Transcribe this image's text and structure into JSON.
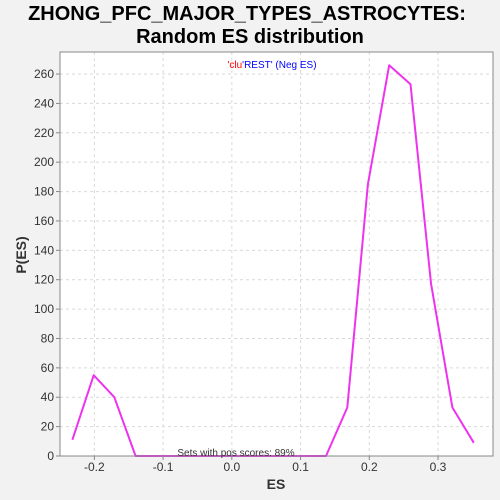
{
  "chart_data": {
    "type": "line",
    "title_line1": "ZHONG_PFC_MAJOR_TYPES_ASTROCYTES:",
    "title_line2": "Random ES distribution",
    "xlabel": "ES",
    "ylabel": "P(ES)",
    "xlim": [
      -0.25,
      0.38
    ],
    "ylim": [
      0,
      275
    ],
    "xticks": [
      -0.2,
      -0.1,
      0.0,
      0.1,
      0.2,
      0.3
    ],
    "xtick_labels": [
      "-0.2",
      "-0.1",
      "0.0",
      "0.1",
      "0.2",
      "0.3"
    ],
    "yticks": [
      0,
      20,
      40,
      60,
      80,
      100,
      120,
      140,
      160,
      180,
      200,
      220,
      240,
      260
    ],
    "grid": true,
    "legend": {
      "placement": "top-center",
      "entries": [
        {
          "text": "'clu",
          "color": "#ff0000"
        },
        {
          "text": "'REST' (Neg ES)",
          "color": "#0000ff"
        }
      ]
    },
    "annotation": "Sets with pos scores: 89%",
    "series": [
      {
        "color": "#ee33ee",
        "x": [
          -0.232,
          -0.201,
          -0.171,
          -0.14,
          -0.109,
          -0.078,
          -0.047,
          -0.017,
          0.014,
          0.045,
          0.076,
          0.106,
          0.137,
          0.168,
          0.198,
          0.229,
          0.26,
          0.29,
          0.321,
          0.352
        ],
        "y": [
          11,
          55,
          40,
          0,
          0,
          0,
          0,
          0,
          0,
          0,
          0,
          0,
          0,
          33,
          185,
          266,
          253,
          117,
          33,
          9
        ]
      }
    ]
  }
}
